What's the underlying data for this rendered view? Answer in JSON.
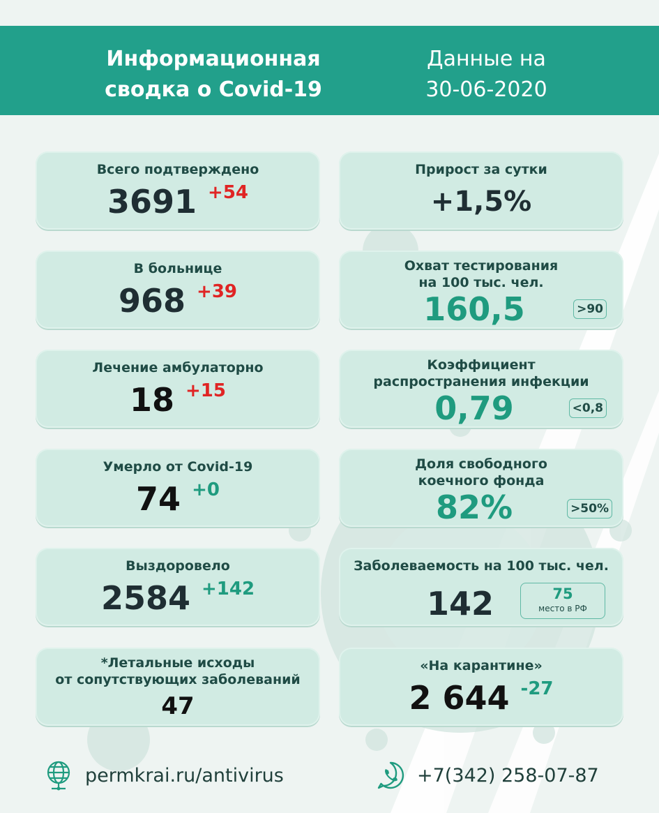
{
  "header": {
    "title_line1": "Информационная",
    "title_line2": "сводка о Covid-19",
    "date_line1": "Данные на",
    "date_line2": "30-06-2020"
  },
  "left": [
    {
      "label1": "Всего подтверждено",
      "value": "3691",
      "delta": "+54",
      "delta_color": "#e02424"
    },
    {
      "label1": "В больнице",
      "value": "968",
      "delta": "+39",
      "delta_color": "#e02424"
    },
    {
      "label1": "Лечение амбулаторно",
      "value": "18",
      "delta": "+15",
      "delta_color": "#e02424"
    },
    {
      "label1": "Умерло от Covid-19",
      "value": "74",
      "delta": "+0",
      "delta_color": "#1f9b7f"
    },
    {
      "label1": "Выздоровело",
      "value": "2584",
      "delta": "+142",
      "delta_color": "#1f9b7f"
    },
    {
      "label1": "*Летальные исходы",
      "label2": "от сопутствующих заболеваний",
      "value": "47"
    }
  ],
  "right": [
    {
      "label1": "Прирост за сутки",
      "value": "+1,5%"
    },
    {
      "label1": "Охват тестирования",
      "label2": "на 100 тыс. чел.",
      "value": "160,5",
      "badge": ">90"
    },
    {
      "label1": "Коэффициент",
      "label2": "распространения инфекции",
      "value": "0,79",
      "badge": "<0,8"
    },
    {
      "label1": "Доля свободного",
      "label2": "коечного фонда",
      "value": "82%",
      "badge": ">50%"
    },
    {
      "label1": "Заболеваемость на 100 тыс. чел.",
      "value": "142",
      "place_num": "75",
      "place_text": "место в РФ"
    },
    {
      "label1": "«На карантине»",
      "value": "2 644",
      "delta": "-27"
    }
  ],
  "footer": {
    "site": "permkrai.ru/antivirus",
    "phone": "+7(342) 258-07-87"
  },
  "colors": {
    "header_bg": "#22a08b",
    "card_bg": "#d1ebe3",
    "accent_green": "#1f9b7f",
    "accent_red": "#e02424"
  },
  "icons": [
    "globe-icon",
    "whatsapp-phone-icon",
    "virus-icon"
  ]
}
